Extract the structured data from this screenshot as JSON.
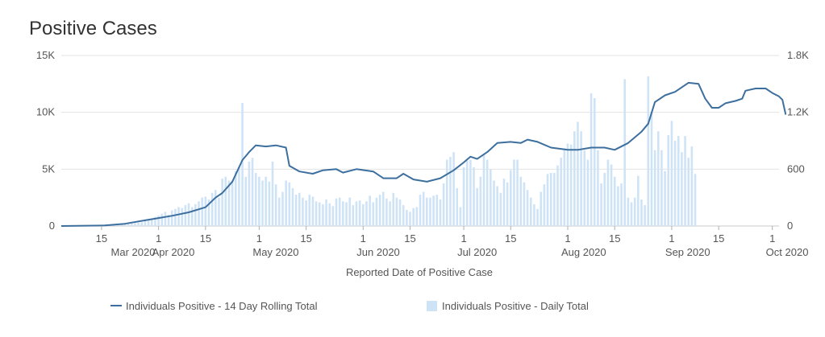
{
  "chart_data": {
    "type": "bar+line",
    "title": "Positive Cases",
    "xlabel": "Reported Date of Positive Case",
    "x_range": [
      "2020-03-03",
      "2020-10-03"
    ],
    "y_left": {
      "range": [
        0,
        15000
      ],
      "ticks": [
        0,
        5000,
        10000,
        15000
      ],
      "tick_labels": [
        "0",
        "5K",
        "10K",
        "15K"
      ]
    },
    "y_right": {
      "range": [
        0,
        1800
      ],
      "ticks": [
        0,
        600,
        1200,
        1800
      ],
      "tick_labels": [
        "0",
        "600",
        "1.2K",
        "1.8K"
      ]
    },
    "x_ticks": [
      {
        "date": "2020-03-15",
        "day": "15",
        "month": ""
      },
      {
        "date": "2020-03-31",
        "day": "",
        "month": "Mar 2020"
      },
      {
        "date": "2020-04-01",
        "day": "1",
        "month": "Apr 2020"
      },
      {
        "date": "2020-04-15",
        "day": "15",
        "month": ""
      },
      {
        "date": "2020-05-01",
        "day": "1",
        "month": "May 2020"
      },
      {
        "date": "2020-05-15",
        "day": "15",
        "month": ""
      },
      {
        "date": "2020-06-01",
        "day": "1",
        "month": "Jun 2020"
      },
      {
        "date": "2020-06-15",
        "day": "15",
        "month": ""
      },
      {
        "date": "2020-07-01",
        "day": "1",
        "month": "Jul 2020"
      },
      {
        "date": "2020-07-15",
        "day": "15",
        "month": ""
      },
      {
        "date": "2020-08-01",
        "day": "1",
        "month": "Aug 2020"
      },
      {
        "date": "2020-08-15",
        "day": "15",
        "month": ""
      },
      {
        "date": "2020-09-01",
        "day": "1",
        "month": "Sep 2020"
      },
      {
        "date": "2020-09-15",
        "day": "15",
        "month": ""
      },
      {
        "date": "2020-10-01",
        "day": "1",
        "month": "Oct 2020"
      }
    ],
    "grid": true,
    "legend_position": "bottom",
    "series": [
      {
        "name": "Individuals Positive - 14 Day Rolling Total",
        "type": "line",
        "axis": "left",
        "color": "#3d6f9e",
        "points": [
          [
            "2020-03-03",
            0
          ],
          [
            "2020-03-16",
            50
          ],
          [
            "2020-03-22",
            200
          ],
          [
            "2020-03-28",
            500
          ],
          [
            "2020-04-01",
            700
          ],
          [
            "2020-04-05",
            900
          ],
          [
            "2020-04-10",
            1200
          ],
          [
            "2020-04-15",
            1650
          ],
          [
            "2020-04-18",
            2500
          ],
          [
            "2020-04-20",
            2900
          ],
          [
            "2020-04-23",
            3900
          ],
          [
            "2020-04-26",
            5800
          ],
          [
            "2020-04-28",
            6500
          ],
          [
            "2020-04-30",
            7100
          ],
          [
            "2020-05-03",
            7000
          ],
          [
            "2020-05-06",
            7100
          ],
          [
            "2020-05-09",
            6900
          ],
          [
            "2020-05-10",
            5300
          ],
          [
            "2020-05-13",
            4800
          ],
          [
            "2020-05-17",
            4600
          ],
          [
            "2020-05-20",
            4900
          ],
          [
            "2020-05-24",
            5000
          ],
          [
            "2020-05-26",
            4700
          ],
          [
            "2020-05-30",
            5000
          ],
          [
            "2020-06-04",
            4800
          ],
          [
            "2020-06-07",
            4200
          ],
          [
            "2020-06-11",
            4200
          ],
          [
            "2020-06-13",
            4600
          ],
          [
            "2020-06-16",
            4100
          ],
          [
            "2020-06-20",
            3900
          ],
          [
            "2020-06-24",
            4200
          ],
          [
            "2020-06-28",
            4900
          ],
          [
            "2020-07-01",
            5600
          ],
          [
            "2020-07-03",
            6100
          ],
          [
            "2020-07-05",
            5900
          ],
          [
            "2020-07-08",
            6500
          ],
          [
            "2020-07-11",
            7300
          ],
          [
            "2020-07-15",
            7400
          ],
          [
            "2020-07-18",
            7300
          ],
          [
            "2020-07-20",
            7600
          ],
          [
            "2020-07-23",
            7400
          ],
          [
            "2020-07-27",
            6900
          ],
          [
            "2020-08-01",
            6700
          ],
          [
            "2020-08-04",
            6700
          ],
          [
            "2020-08-08",
            6900
          ],
          [
            "2020-08-12",
            6900
          ],
          [
            "2020-08-15",
            6700
          ],
          [
            "2020-08-19",
            7300
          ],
          [
            "2020-08-23",
            8300
          ],
          [
            "2020-08-25",
            9000
          ],
          [
            "2020-08-27",
            10900
          ],
          [
            "2020-08-30",
            11500
          ],
          [
            "2020-09-02",
            11800
          ],
          [
            "2020-09-06",
            12600
          ],
          [
            "2020-09-09",
            12500
          ],
          [
            "2020-09-11",
            11200
          ],
          [
            "2020-09-13",
            10400
          ],
          [
            "2020-09-15",
            10400
          ],
          [
            "2020-09-17",
            10800
          ],
          [
            "2020-09-20",
            11000
          ],
          [
            "2020-09-22",
            11200
          ],
          [
            "2020-09-23",
            11900
          ],
          [
            "2020-09-26",
            12100
          ],
          [
            "2020-09-29",
            12100
          ],
          [
            "2020-10-01",
            11700
          ],
          [
            "2020-10-03",
            11400
          ],
          [
            "2020-10-04",
            11100
          ],
          [
            "2020-10-05",
            9800
          ]
        ]
      },
      {
        "name": "Individuals Positive - Daily Total",
        "type": "bar",
        "axis": "right",
        "color": "#cfe3f7",
        "start_date": "2020-03-14",
        "values": [
          2,
          3,
          4,
          5,
          6,
          8,
          10,
          14,
          18,
          22,
          25,
          30,
          35,
          40,
          55,
          70,
          80,
          95,
          110,
          130,
          150,
          120,
          165,
          180,
          200,
          190,
          220,
          240,
          200,
          230,
          260,
          300,
          310,
          280,
          350,
          380,
          300,
          500,
          520,
          480,
          480,
          580,
          620,
          1300,
          520,
          680,
          720,
          560,
          520,
          480,
          520,
          470,
          680,
          440,
          300,
          360,
          480,
          460,
          400,
          330,
          350,
          300,
          270,
          330,
          310,
          260,
          250,
          230,
          280,
          240,
          210,
          290,
          300,
          260,
          250,
          300,
          220,
          260,
          270,
          230,
          260,
          320,
          250,
          300,
          330,
          360,
          290,
          260,
          350,
          300,
          280,
          220,
          170,
          150,
          190,
          200,
          330,
          360,
          300,
          300,
          320,
          330,
          280,
          450,
          700,
          730,
          780,
          400,
          200,
          620,
          690,
          700,
          620,
          400,
          520,
          750,
          700,
          600,
          480,
          420,
          350,
          500,
          460,
          590,
          700,
          700,
          520,
          460,
          380,
          300,
          230,
          180,
          360,
          440,
          550,
          560,
          560,
          640,
          720,
          820,
          870,
          860,
          1000,
          1100,
          1000,
          800,
          700,
          1400,
          1350,
          800,
          450,
          560,
          700,
          650,
          520,
          420,
          450,
          1550,
          300,
          250,
          300,
          530,
          280,
          220,
          1580,
          1200,
          800,
          1000,
          800,
          580,
          960,
          1110,
          900,
          950,
          780,
          950,
          720,
          840,
          550
        ]
      }
    ]
  }
}
